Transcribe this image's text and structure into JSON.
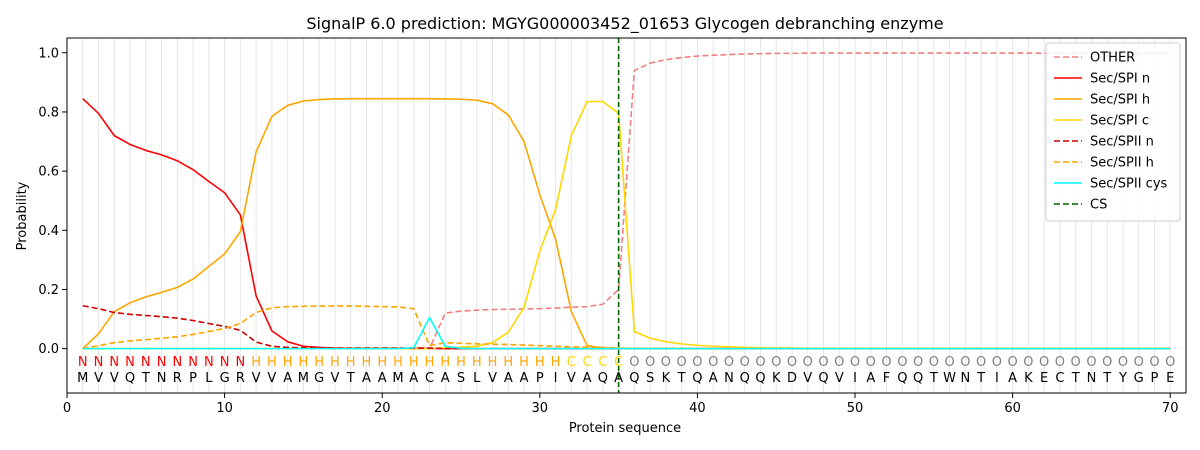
{
  "chart_data": {
    "type": "line",
    "title": "SignalP 6.0 prediction: MGYG000003452_01653 Glycogen debranching enzyme",
    "xlabel": "Protein sequence",
    "ylabel": "Probability",
    "xlim": [
      0,
      71
    ],
    "ylim": [
      -0.15,
      1.05
    ],
    "xticks": [
      0,
      10,
      20,
      30,
      40,
      50,
      60,
      70
    ],
    "yticks": [
      0.0,
      0.2,
      0.4,
      0.6,
      0.8,
      1.0
    ],
    "ytick_labels": [
      "0.0",
      "0.2",
      "0.4",
      "0.6",
      "0.8",
      "1.0"
    ],
    "grid": "vertical lines at each residue",
    "legend_position": "top-right",
    "x": [
      1,
      2,
      3,
      4,
      5,
      6,
      7,
      8,
      9,
      10,
      11,
      12,
      13,
      14,
      15,
      16,
      17,
      18,
      19,
      20,
      21,
      22,
      23,
      24,
      25,
      26,
      27,
      28,
      29,
      30,
      31,
      32,
      33,
      34,
      35,
      36,
      37,
      38,
      39,
      40,
      41,
      42,
      43,
      44,
      45,
      46,
      47,
      48,
      49,
      50,
      51,
      52,
      53,
      54,
      55,
      56,
      57,
      58,
      59,
      60,
      61,
      62,
      63,
      64,
      65,
      66,
      67,
      68,
      69,
      70
    ],
    "sequence": [
      "M",
      "V",
      "V",
      "Q",
      "T",
      "N",
      "R",
      "P",
      "L",
      "G",
      "R",
      "V",
      "V",
      "A",
      "M",
      "G",
      "V",
      "T",
      "A",
      "A",
      "M",
      "A",
      "C",
      "A",
      "S",
      "L",
      "V",
      "A",
      "A",
      "P",
      "I",
      "V",
      "A",
      "Q",
      "A",
      "Q",
      "S",
      "K",
      "T",
      "Q",
      "A",
      "N",
      "Q",
      "Q",
      "K",
      "D",
      "V",
      "Q",
      "V",
      "I",
      "A",
      "F",
      "Q",
      "Q",
      "T",
      "W",
      "N",
      "T",
      "I",
      "A",
      "K",
      "E",
      "C",
      "T",
      "N",
      "T",
      "Y",
      "G",
      "P",
      "E"
    ],
    "labels": [
      "N",
      "N",
      "N",
      "N",
      "N",
      "N",
      "N",
      "N",
      "N",
      "N",
      "N",
      "H",
      "H",
      "H",
      "H",
      "H",
      "H",
      "H",
      "H",
      "H",
      "H",
      "H",
      "H",
      "H",
      "H",
      "H",
      "H",
      "H",
      "H",
      "H",
      "H",
      "C",
      "C",
      "C",
      "C",
      "O",
      "O",
      "O",
      "O",
      "O",
      "O",
      "O",
      "O",
      "O",
      "O",
      "O",
      "O",
      "O",
      "O",
      "O",
      "O",
      "O",
      "O",
      "O",
      "O",
      "O",
      "O",
      "O",
      "O",
      "O",
      "O",
      "O",
      "O",
      "O",
      "O",
      "O",
      "O",
      "O",
      "O",
      "O"
    ],
    "label_colors": {
      "N": "#ff0000",
      "H": "#ffa500",
      "C": "#ffd700",
      "O": "#808080"
    },
    "cs_position": 35,
    "series": [
      {
        "name": "OTHER",
        "color": "#f08080",
        "dash": "dashed",
        "values": [
          0.0,
          0.0,
          0.0,
          0.0,
          0.0,
          0.0,
          0.0,
          0.0,
          0.0,
          0.0,
          0.0,
          0.0,
          0.0,
          0.0,
          0.0,
          0.0,
          0.0,
          0.0,
          0.0,
          0.0,
          0.0,
          0.0,
          0.0,
          0.12,
          0.127,
          0.13,
          0.132,
          0.133,
          0.134,
          0.135,
          0.137,
          0.14,
          0.142,
          0.15,
          0.2,
          0.94,
          0.965,
          0.977,
          0.984,
          0.989,
          0.992,
          0.994,
          0.996,
          0.997,
          0.998,
          0.998,
          0.999,
          0.999,
          0.999,
          0.999,
          0.999,
          0.999,
          0.999,
          0.999,
          0.999,
          0.999,
          0.999,
          0.999,
          0.999,
          0.999,
          0.999,
          0.998,
          0.998,
          0.998,
          0.998,
          0.998,
          0.998,
          0.998,
          0.998,
          0.998
        ]
      },
      {
        "name": "Sec/SPI n",
        "color": "#ff0000",
        "dash": "solid",
        "values": [
          0.845,
          0.795,
          0.72,
          0.69,
          0.67,
          0.655,
          0.635,
          0.605,
          0.565,
          0.527,
          0.452,
          0.178,
          0.06,
          0.023,
          0.008,
          0.004,
          0.002,
          0.001,
          0.001,
          0.001,
          0.001,
          0.001,
          0.001,
          0.0,
          0.0,
          0.0,
          0.0,
          0.0,
          0.0,
          0.0,
          0.0,
          0.0,
          0.0,
          0.0,
          0.0,
          0.0,
          0.0,
          0.0,
          0.0,
          0.0,
          0.0,
          0.0,
          0.0,
          0.0,
          0.0,
          0.0,
          0.0,
          0.0,
          0.0,
          0.0,
          0.0,
          0.0,
          0.0,
          0.0,
          0.0,
          0.0,
          0.0,
          0.0,
          0.0,
          0.0,
          0.0,
          0.0,
          0.0,
          0.0,
          0.0,
          0.0,
          0.0,
          0.0,
          0.0,
          0.0
        ]
      },
      {
        "name": "Sec/SPI h",
        "color": "#ffa500",
        "dash": "solid",
        "values": [
          0.0,
          0.05,
          0.125,
          0.155,
          0.175,
          0.19,
          0.207,
          0.235,
          0.278,
          0.32,
          0.395,
          0.665,
          0.785,
          0.822,
          0.837,
          0.842,
          0.844,
          0.845,
          0.845,
          0.845,
          0.845,
          0.845,
          0.845,
          0.844,
          0.843,
          0.84,
          0.828,
          0.79,
          0.7,
          0.52,
          0.37,
          0.125,
          0.01,
          0.002,
          0.001,
          0.0,
          0.0,
          0.0,
          0.0,
          0.0,
          0.0,
          0.0,
          0.0,
          0.0,
          0.0,
          0.0,
          0.0,
          0.0,
          0.0,
          0.0,
          0.0,
          0.0,
          0.0,
          0.0,
          0.0,
          0.0,
          0.0,
          0.0,
          0.0,
          0.0,
          0.0,
          0.0,
          0.0,
          0.0,
          0.0,
          0.0,
          0.0,
          0.0,
          0.0,
          0.0
        ]
      },
      {
        "name": "Sec/SPI c",
        "color": "#ffd700",
        "dash": "solid",
        "values": [
          0.0,
          0.0,
          0.0,
          0.0,
          0.0,
          0.0,
          0.0,
          0.0,
          0.0,
          0.0,
          0.0,
          0.0,
          0.0,
          0.0,
          0.0,
          0.0,
          0.0,
          0.0,
          0.0,
          0.0,
          0.0,
          0.0,
          0.0,
          0.003,
          0.005,
          0.008,
          0.02,
          0.055,
          0.14,
          0.33,
          0.47,
          0.72,
          0.835,
          0.835,
          0.795,
          0.058,
          0.035,
          0.023,
          0.016,
          0.011,
          0.008,
          0.006,
          0.004,
          0.003,
          0.002,
          0.002,
          0.001,
          0.001,
          0.001,
          0.001,
          0.001,
          0.001,
          0.001,
          0.001,
          0.001,
          0.001,
          0.001,
          0.001,
          0.001,
          0.001,
          0.001,
          0.001,
          0.001,
          0.001,
          0.001,
          0.001,
          0.001,
          0.001,
          0.001,
          0.001
        ]
      },
      {
        "name": "Sec/SPII n",
        "color": "#cc0000",
        "dash": "dashed",
        "values": [
          0.145,
          0.135,
          0.122,
          0.116,
          0.112,
          0.108,
          0.103,
          0.095,
          0.085,
          0.075,
          0.062,
          0.022,
          0.008,
          0.004,
          0.003,
          0.002,
          0.002,
          0.002,
          0.002,
          0.002,
          0.002,
          0.002,
          0.002,
          0.0,
          0.0,
          0.0,
          0.0,
          0.0,
          0.0,
          0.0,
          0.0,
          0.0,
          0.0,
          0.0,
          0.0,
          0.0,
          0.0,
          0.0,
          0.0,
          0.0,
          0.0,
          0.0,
          0.0,
          0.0,
          0.0,
          0.0,
          0.0,
          0.0,
          0.0,
          0.0,
          0.0,
          0.0,
          0.0,
          0.0,
          0.0,
          0.0,
          0.0,
          0.0,
          0.0,
          0.0,
          0.0,
          0.0,
          0.0,
          0.0,
          0.0,
          0.0,
          0.0,
          0.0,
          0.0,
          0.0
        ]
      },
      {
        "name": "Sec/SPII h",
        "color": "#ffa500",
        "dash": "dashed",
        "values": [
          0.0,
          0.01,
          0.02,
          0.026,
          0.03,
          0.035,
          0.04,
          0.048,
          0.058,
          0.068,
          0.085,
          0.122,
          0.138,
          0.142,
          0.143,
          0.144,
          0.144,
          0.144,
          0.143,
          0.142,
          0.141,
          0.135,
          0.01,
          0.02,
          0.018,
          0.016,
          0.015,
          0.014,
          0.012,
          0.01,
          0.008,
          0.006,
          0.005,
          0.004,
          0.002,
          0.0,
          0.0,
          0.0,
          0.0,
          0.0,
          0.0,
          0.0,
          0.0,
          0.0,
          0.0,
          0.0,
          0.0,
          0.0,
          0.0,
          0.0,
          0.0,
          0.0,
          0.0,
          0.0,
          0.0,
          0.0,
          0.0,
          0.0,
          0.0,
          0.0,
          0.0,
          0.0,
          0.0,
          0.0,
          0.0,
          0.0,
          0.0,
          0.0,
          0.0,
          0.0
        ]
      },
      {
        "name": "Sec/SPII cys",
        "color": "#00ffff",
        "dash": "solid",
        "values": [
          0.0,
          0.0,
          0.0,
          0.0,
          0.0,
          0.0,
          0.0,
          0.0,
          0.0,
          0.0,
          0.0,
          0.0,
          0.0,
          0.0,
          0.0,
          0.0,
          0.0,
          0.0,
          0.0,
          0.0,
          0.0,
          0.003,
          0.105,
          0.008,
          0.001,
          0.0,
          0.0,
          0.0,
          0.0,
          0.0,
          0.0,
          0.0,
          0.0,
          0.0,
          0.0,
          0.0,
          0.0,
          0.0,
          0.0,
          0.0,
          0.0,
          0.0,
          0.0,
          0.0,
          0.0,
          0.0,
          0.0,
          0.0,
          0.0,
          0.0,
          0.0,
          0.0,
          0.0,
          0.0,
          0.0,
          0.0,
          0.0,
          0.0,
          0.0,
          0.0,
          0.0,
          0.0,
          0.0,
          0.0,
          0.0,
          0.0,
          0.0,
          0.0,
          0.0,
          0.0
        ]
      }
    ],
    "cs_legend": {
      "name": "CS",
      "color": "#006400",
      "dash": "dashed"
    }
  }
}
